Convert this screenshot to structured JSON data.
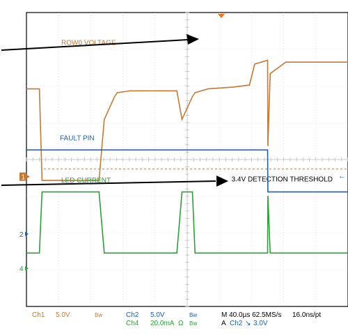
{
  "chart_data": {
    "type": "line",
    "grid": true,
    "x": [
      0,
      0.5,
      0.6,
      2.8,
      3.0,
      3.4,
      3.5,
      4.0,
      5.8,
      6.0,
      6.4,
      6.5,
      7.0,
      8.0,
      8.6,
      8.8,
      9.3,
      9.31,
      9.4,
      10.0,
      12.0,
      12.4
    ],
    "series": [
      {
        "name": "ROW0 VOLTAGE",
        "color": "#c07a3a",
        "values": [
          2.3,
          2.3,
          -0.1,
          -0.1,
          1.5,
          2.1,
          2.2,
          2.25,
          2.25,
          1.5,
          2.1,
          2.2,
          2.3,
          2.35,
          2.4,
          2.95,
          3.05,
          0.8,
          2.7,
          3.0,
          3.0,
          3.0
        ]
      },
      {
        "name": "FAULT PIN",
        "color": "#1f5fa8",
        "values": [
          0.7,
          0.7,
          0.7,
          0.7,
          0.7,
          0.7,
          0.7,
          0.7,
          0.7,
          0.7,
          0.7,
          0.7,
          0.7,
          0.7,
          0.7,
          0.7,
          0.7,
          -0.4,
          -0.4,
          -0.4,
          -0.4,
          -0.4
        ]
      },
      {
        "name": "LED CURRENT",
        "color": "#2e9e3a",
        "values": [
          -2.0,
          -2.0,
          -0.4,
          -0.4,
          -2.0,
          -2.0,
          -2.0,
          -2.0,
          -2.0,
          -0.4,
          -0.4,
          -2.0,
          -2.0,
          -2.0,
          -2.0,
          -2.0,
          -2.0,
          -0.5,
          -2.0,
          -2.0,
          -2.0,
          -2.0
        ]
      }
    ],
    "threshold": {
      "label": "3.4V DETECTION THRESHOLD",
      "color": "#c07a3a",
      "value": 0.2
    },
    "xlim": [
      0,
      12.4
    ],
    "ylim": [
      -3.4,
      4.3
    ],
    "channel_markers": [
      {
        "label": "1",
        "y": 0.0,
        "color": "#c07a3a"
      },
      {
        "label": "2",
        "y": -1.5,
        "color": "#1f5fa8"
      },
      {
        "label": "4",
        "y": -2.4,
        "color": "#2e9e3a"
      }
    ],
    "status_bar": {
      "ch1": "Ch1",
      "ch1_scale": "5.0V",
      "ch1_bw": "Bw",
      "ch2": "Ch2",
      "ch2_scale": "5.0V",
      "ch2_bw": "Bw",
      "ch4": "Ch4",
      "ch4_scale": "20.0mA",
      "ch4_unit": "Ω",
      "ch4_bw": "Bw",
      "timebase": "M 40.0µs 62.5MS/s",
      "resolution": "16.0ns/pt",
      "trigger": "A",
      "trigger_ch": "Ch2",
      "trigger_slope": "↘",
      "trigger_level": "3.0V"
    }
  }
}
